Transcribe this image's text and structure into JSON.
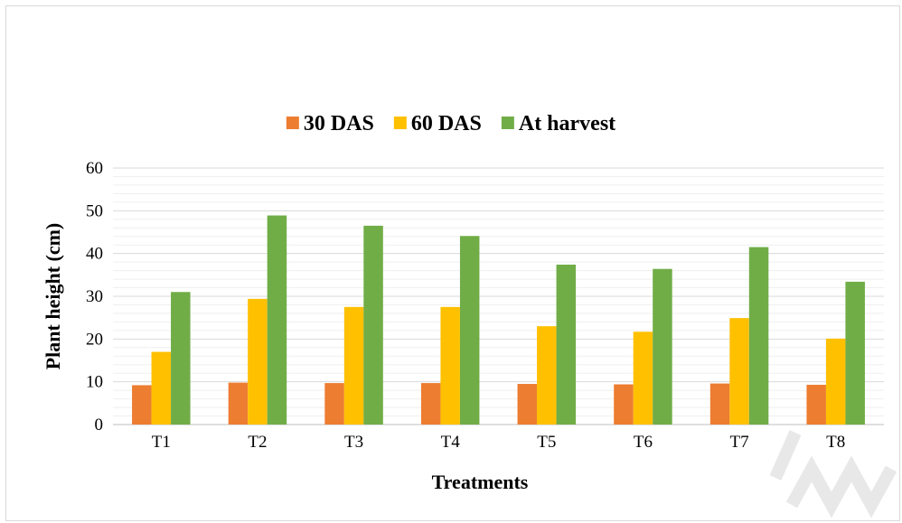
{
  "chart_data": {
    "type": "bar",
    "title": "",
    "xlabel": "Treatments",
    "ylabel": "Plant height (cm)",
    "ylim": [
      0,
      60
    ],
    "yticks": [
      0,
      10,
      20,
      30,
      40,
      50,
      60
    ],
    "grid": true,
    "legend_position": "top",
    "categories": [
      "T1",
      "T2",
      "T3",
      "T4",
      "T5",
      "T6",
      "T7",
      "T8"
    ],
    "series": [
      {
        "name": "30 DAS",
        "color": "#ED7D31",
        "values": [
          9.2,
          9.8,
          9.7,
          9.7,
          9.5,
          9.4,
          9.6,
          9.3
        ]
      },
      {
        "name": "60 DAS",
        "color": "#FFC000",
        "values": [
          17.0,
          29.4,
          27.5,
          27.5,
          23.0,
          21.7,
          24.9,
          20.1
        ]
      },
      {
        "name": "At harvest",
        "color": "#70AD47",
        "values": [
          31.0,
          48.9,
          46.5,
          44.1,
          37.4,
          36.4,
          41.5,
          33.4
        ]
      }
    ]
  }
}
